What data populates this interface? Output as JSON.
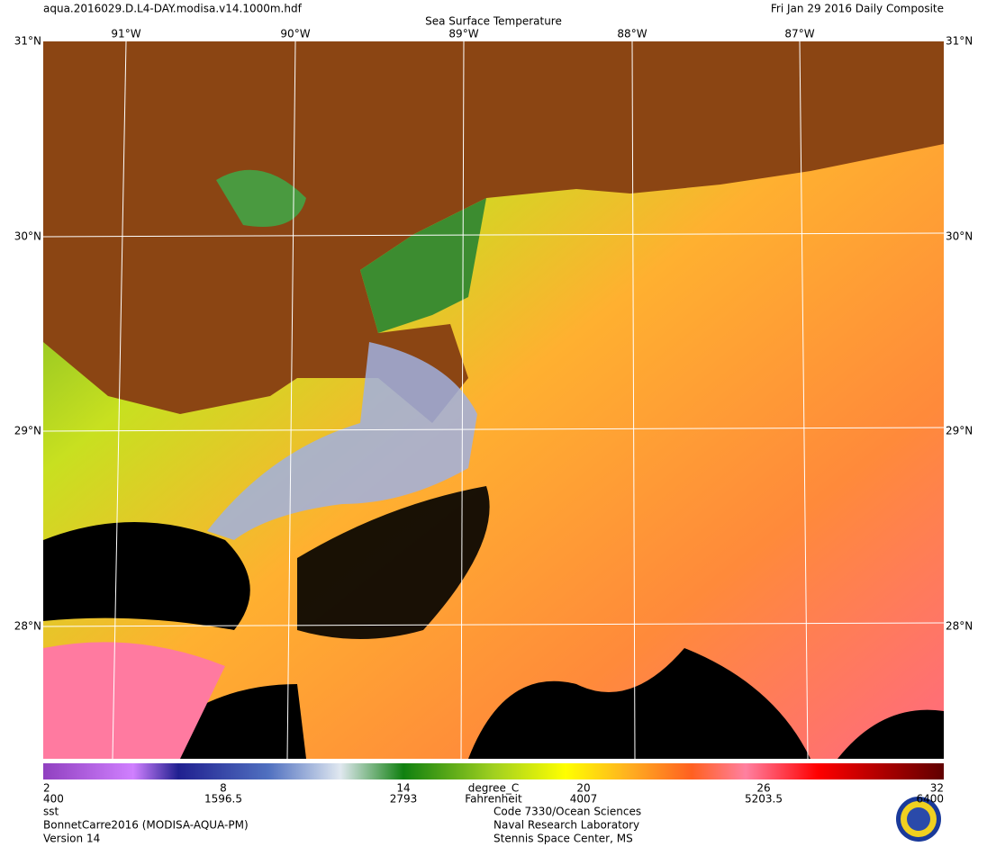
{
  "header": {
    "filename": "aqua.2016029.D.L4-DAY.modisa.v14.1000m.hdf",
    "date": "Fri Jan 29 2016 Daily Composite",
    "title": "Sea Surface Temperature"
  },
  "map": {
    "lon_labels": [
      "91°W",
      "90°W",
      "89°W",
      "88°W",
      "87°W"
    ],
    "lat_labels": [
      "31°N",
      "30°N",
      "29°N",
      "28°N"
    ]
  },
  "colorbar": {
    "celsius_ticks": [
      2,
      8,
      14,
      20,
      26,
      32
    ],
    "celsius_unit": "degree_C",
    "fahrenheit_ticks": [
      400,
      1596.5,
      2793,
      4007,
      5203.5,
      6400
    ],
    "fahrenheit_unit": "Fahrenheit"
  },
  "footer": {
    "left": [
      "sst",
      "BonnetCarre2016 (MODISA-AQUA-PM)",
      "Version 14"
    ],
    "right": [
      "Code 7330/Ocean Sciences",
      "Naval Research Laboratory",
      "Stennis Space Center, MS"
    ]
  }
}
